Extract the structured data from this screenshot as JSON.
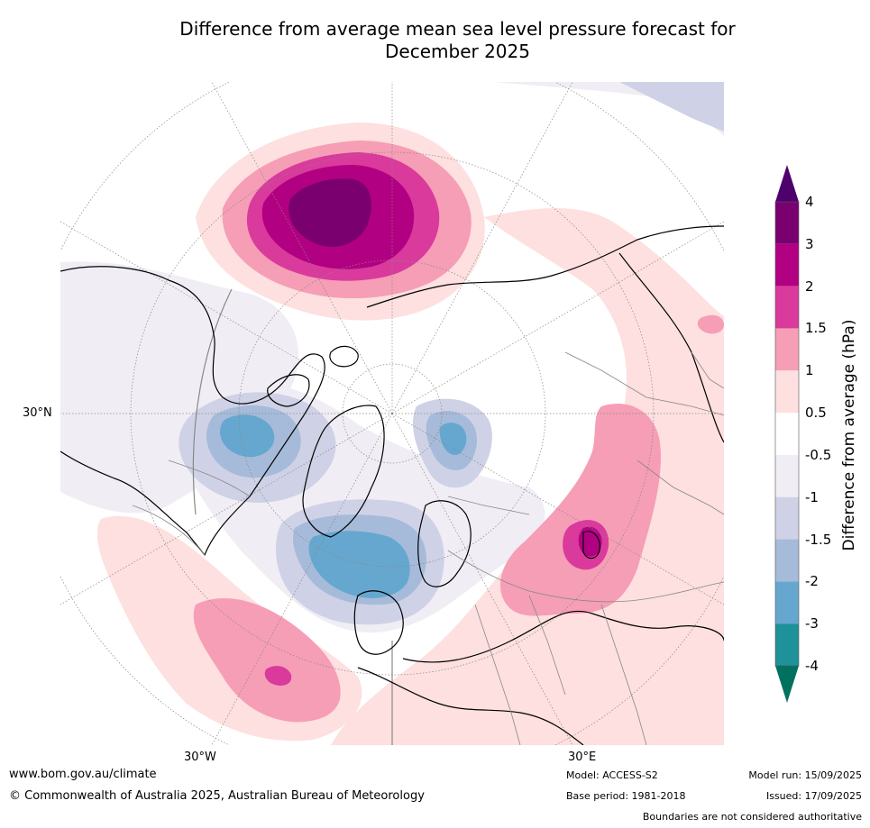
{
  "title_line1": "Difference from average mean sea level pressure forecast for",
  "title_line2": "December 2025",
  "map": {
    "projection": "north-polar-stereographic",
    "lat_labels": [
      "30°N"
    ],
    "lon_labels": [
      "30°W",
      "30°E"
    ]
  },
  "colorbar": {
    "label": "Difference from average (hPa)",
    "ticks": [
      "4",
      "3",
      "2",
      "1.5",
      "1",
      "0.5",
      "-0.5",
      "-1",
      "-1.5",
      "-2",
      "-3",
      "-4"
    ],
    "colors": [
      "#7a0070",
      "#b20082",
      "#d93a9c",
      "#f59eb6",
      "#fde0df",
      "#ffffff",
      "#f1edf4",
      "#cfd2e6",
      "#a6bbd9",
      "#66a7cf",
      "#1f9198",
      "#00705f"
    ],
    "over_color": "#4e006d",
    "under_color": "#00705f"
  },
  "footer": {
    "url": "www.bom.gov.au/climate",
    "copyright": "© Commonwealth of Australia 2025, Australian Bureau of Meteorology",
    "model": "Model: ACCESS-S2",
    "base_period": "Base period: 1981-2018",
    "model_run": "Model run: 15/09/2025",
    "issued": "Issued: 17/09/2025",
    "disclaimer": "Boundaries are not considered authoritative"
  }
}
